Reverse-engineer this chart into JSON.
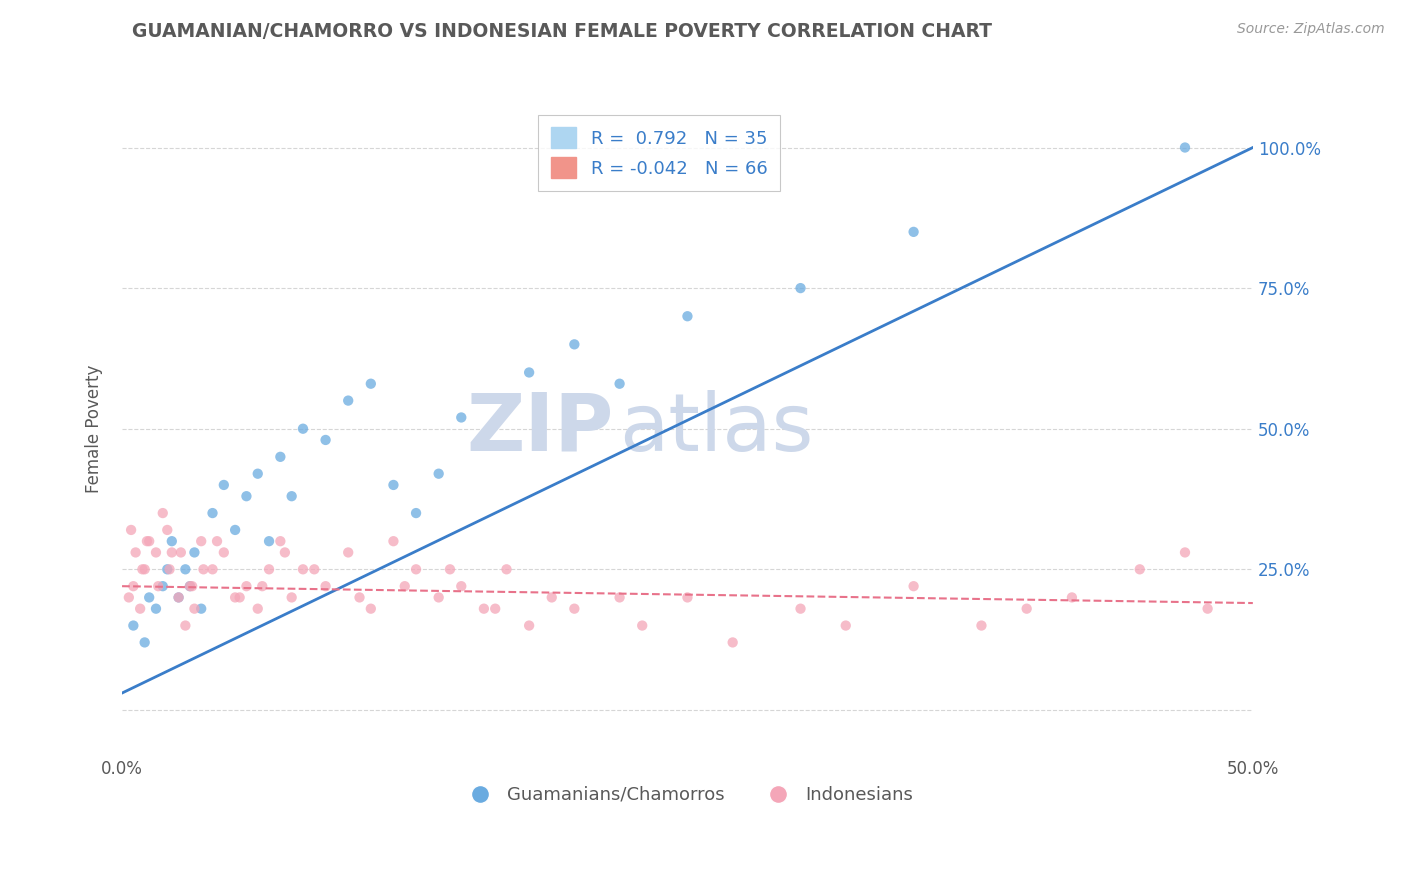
{
  "title": "GUAMANIAN/CHAMORRO VS INDONESIAN FEMALE POVERTY CORRELATION CHART",
  "source": "Source: ZipAtlas.com",
  "ylabel": "Female Poverty",
  "blue_scatter_x": [
    0.5,
    1.0,
    1.2,
    1.5,
    1.8,
    2.0,
    2.2,
    2.5,
    2.8,
    3.0,
    3.2,
    3.5,
    4.0,
    4.5,
    5.0,
    5.5,
    6.0,
    6.5,
    7.0,
    7.5,
    8.0,
    9.0,
    10.0,
    11.0,
    12.0,
    13.0,
    14.0,
    15.0,
    18.0,
    20.0,
    22.0,
    25.0,
    30.0,
    35.0,
    47.0
  ],
  "blue_scatter_y": [
    15,
    12,
    20,
    18,
    22,
    25,
    30,
    20,
    25,
    22,
    28,
    18,
    35,
    40,
    32,
    38,
    42,
    30,
    45,
    38,
    50,
    48,
    55,
    58,
    40,
    35,
    42,
    52,
    60,
    65,
    58,
    70,
    75,
    85,
    100
  ],
  "pink_scatter_x": [
    0.3,
    0.5,
    0.8,
    1.0,
    1.2,
    1.5,
    1.8,
    2.0,
    2.2,
    2.5,
    2.8,
    3.0,
    3.2,
    3.5,
    4.0,
    4.5,
    5.0,
    5.5,
    6.0,
    6.5,
    7.0,
    7.5,
    8.0,
    9.0,
    10.0,
    11.0,
    12.0,
    13.0,
    14.0,
    15.0,
    16.0,
    17.0,
    18.0,
    20.0,
    22.0,
    23.0,
    25.0,
    27.0,
    30.0,
    32.0,
    35.0,
    38.0,
    40.0,
    42.0,
    45.0,
    47.0,
    48.0,
    0.4,
    0.6,
    0.9,
    1.1,
    1.6,
    2.1,
    2.6,
    3.1,
    3.6,
    4.2,
    5.2,
    6.2,
    7.2,
    8.5,
    10.5,
    12.5,
    14.5,
    16.5,
    19.0
  ],
  "pink_scatter_y": [
    20,
    22,
    18,
    25,
    30,
    28,
    35,
    32,
    28,
    20,
    15,
    22,
    18,
    30,
    25,
    28,
    20,
    22,
    18,
    25,
    30,
    20,
    25,
    22,
    28,
    18,
    30,
    25,
    20,
    22,
    18,
    25,
    15,
    18,
    20,
    15,
    20,
    12,
    18,
    15,
    22,
    15,
    18,
    20,
    25,
    28,
    18,
    32,
    28,
    25,
    30,
    22,
    25,
    28,
    22,
    25,
    30,
    20,
    22,
    28,
    25,
    20,
    22,
    25,
    18,
    20
  ],
  "blue_line_x": [
    0,
    50
  ],
  "blue_line_y": [
    3,
    100
  ],
  "pink_line_x": [
    0,
    50
  ],
  "pink_line_y": [
    22,
    19
  ],
  "scatter_alpha": 0.75,
  "scatter_size": 55,
  "blue_color": "#6aabe0",
  "pink_color": "#f4a6b8",
  "blue_line_color": "#3a7dc9",
  "pink_line_color": "#e8728a",
  "background_color": "#ffffff",
  "plot_bg_color": "#ffffff",
  "grid_color": "#cccccc",
  "title_color": "#595959",
  "watermark_zip": "ZIP",
  "watermark_atlas": "atlas",
  "watermark_color": "#cdd8ea",
  "xlim": [
    0,
    50
  ],
  "ylim": [
    -8,
    108
  ]
}
